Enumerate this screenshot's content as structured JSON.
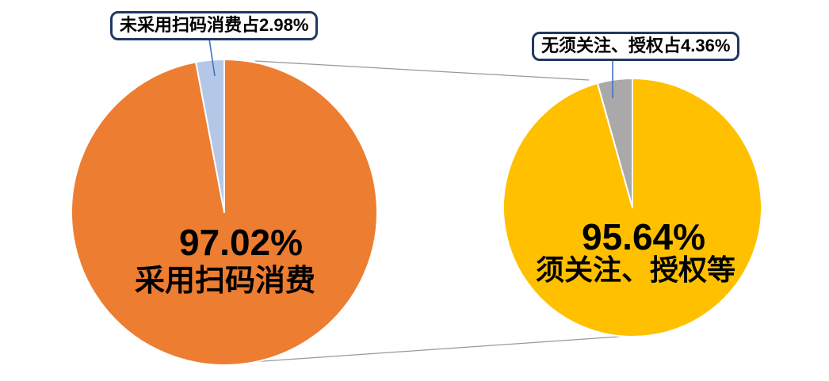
{
  "page": {
    "background": "#FFFFFF",
    "description": "pie-of-pie chart with two pies linked by series connector lines"
  },
  "style": {
    "connector_color": "#999999",
    "leader_color": "#4472C4",
    "callout_border_color": "#203864",
    "slice_separator_color": "#FFFFFF",
    "text_color": "#000000"
  },
  "chart_data": [
    {
      "type": "pie",
      "name": "main-pie",
      "slices": [
        {
          "label": "采用扫码消费",
          "value": 97.02,
          "color": "#ED7D31"
        },
        {
          "label": "未采用扫码消费",
          "value": 2.98,
          "color": "#B4C7E7"
        }
      ],
      "start_angle_deg": 0,
      "direction": "clockwise",
      "center_label": {
        "percent": "97.02%",
        "text": "采用扫码消费"
      },
      "callout": {
        "text": "未采用扫码消费占2.98%"
      }
    },
    {
      "type": "pie",
      "name": "secondary-pie",
      "slices": [
        {
          "label": "须关注、授权等",
          "value": 95.64,
          "color": "#FFC000"
        },
        {
          "label": "无须关注、授权",
          "value": 4.36,
          "color": "#A9A9A9"
        }
      ],
      "start_angle_deg": 0,
      "direction": "clockwise",
      "center_label": {
        "percent": "95.64%",
        "text": "须关注、授权等"
      },
      "callout": {
        "text": "无须关注、授权占4.36%"
      }
    }
  ]
}
